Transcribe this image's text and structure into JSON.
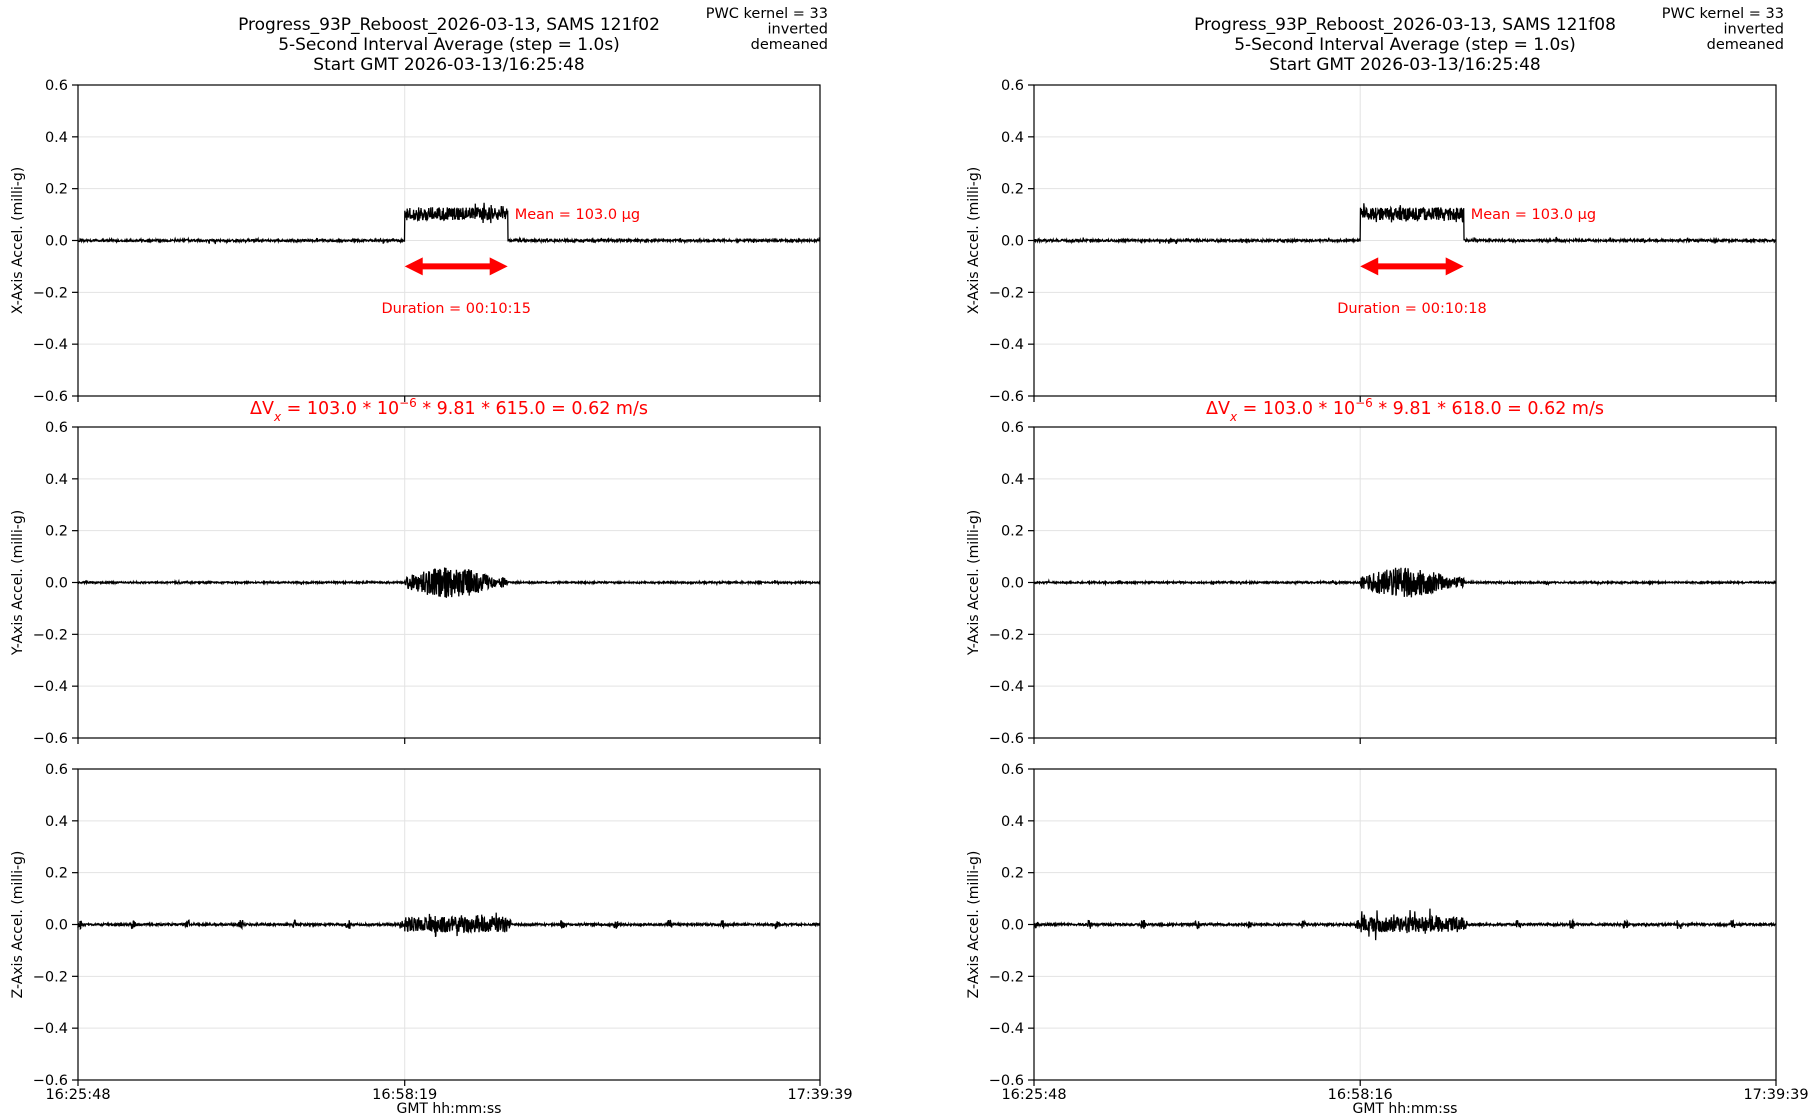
{
  "chart_data": [
    {
      "type": "line",
      "title_lines": [
        "Progress_93P_Reboost_2026-03-13, SAMS 121f02",
        "5-Second Interval Average (step = 1.0s)",
        "Start GMT 2026-03-13/16:25:48"
      ],
      "info_lines": [
        "PWC kernel = 33",
        "inverted",
        "demeaned"
      ],
      "xlabel": "GMT hh:mm:ss",
      "xticks": [
        "16:25:48",
        "16:58:19",
        "17:39:39"
      ],
      "x_range_seconds": [
        0,
        4431
      ],
      "grid": true,
      "axes": [
        {
          "ylabel": "X-Axis Accel. (milli-g)",
          "ylim": [
            -0.6,
            0.6
          ],
          "yticks": [
            "0.6",
            "0.4",
            "0.2",
            "0.0",
            "−0.2",
            "−0.4",
            "−0.6"
          ]
        },
        {
          "ylabel": "Y-Axis Accel. (milli-g)",
          "ylim": [
            -0.6,
            0.6
          ],
          "yticks": [
            "0.6",
            "0.4",
            "0.2",
            "0.0",
            "−0.2",
            "−0.4",
            "−0.6"
          ]
        },
        {
          "ylabel": "Z-Axis Accel. (milli-g)",
          "ylim": [
            -0.6,
            0.6
          ],
          "yticks": [
            "0.6",
            "0.4",
            "0.2",
            "0.0",
            "−0.2",
            "−0.4",
            "−0.6"
          ]
        }
      ],
      "burn": {
        "start_s": 1951,
        "duration_s": 615,
        "mean_milli_g": 0.103
      },
      "mean_label": "Mean = 103.0 μg",
      "duration_label": "Duration = 00:10:15",
      "delta_v": {
        "lead": "ΔV",
        "sub": "x",
        "mid": " = 103.0 * 10",
        "sup": "−6",
        "tail": " * 9.81 * 615.0 = 0.62 m/s"
      }
    },
    {
      "type": "line",
      "title_lines": [
        "Progress_93P_Reboost_2026-03-13, SAMS 121f08",
        "5-Second Interval Average (step = 1.0s)",
        "Start GMT 2026-03-13/16:25:48"
      ],
      "info_lines": [
        "PWC kernel = 33",
        "inverted",
        "demeaned"
      ],
      "xlabel": "GMT hh:mm:ss",
      "xticks": [
        "16:25:48",
        "16:58:16",
        "17:39:39"
      ],
      "x_range_seconds": [
        0,
        4431
      ],
      "grid": true,
      "axes": [
        {
          "ylabel": "X-Axis Accel. (milli-g)",
          "ylim": [
            -0.6,
            0.6
          ],
          "yticks": [
            "0.6",
            "0.4",
            "0.2",
            "0.0",
            "−0.2",
            "−0.4",
            "−0.6"
          ]
        },
        {
          "ylabel": "Y-Axis Accel. (milli-g)",
          "ylim": [
            -0.6,
            0.6
          ],
          "yticks": [
            "0.6",
            "0.4",
            "0.2",
            "0.0",
            "−0.2",
            "−0.4",
            "−0.6"
          ]
        },
        {
          "ylabel": "Z-Axis Accel. (milli-g)",
          "ylim": [
            -0.6,
            0.6
          ],
          "yticks": [
            "0.6",
            "0.4",
            "0.2",
            "0.0",
            "−0.2",
            "−0.4",
            "−0.6"
          ]
        }
      ],
      "burn": {
        "start_s": 1948,
        "duration_s": 618,
        "mean_milli_g": 0.103
      },
      "mean_label": "Mean = 103.0 μg",
      "duration_label": "Duration = 00:10:18",
      "delta_v": {
        "lead": "ΔV",
        "sub": "x",
        "mid": " = 103.0 * 10",
        "sup": "−6",
        "tail": " * 9.81 * 618.0 = 0.62 m/s"
      }
    }
  ],
  "colors": {
    "trace": "#000000",
    "annotation": "#ff0000",
    "grid": "#e3e3e3",
    "axes": "#000000"
  }
}
